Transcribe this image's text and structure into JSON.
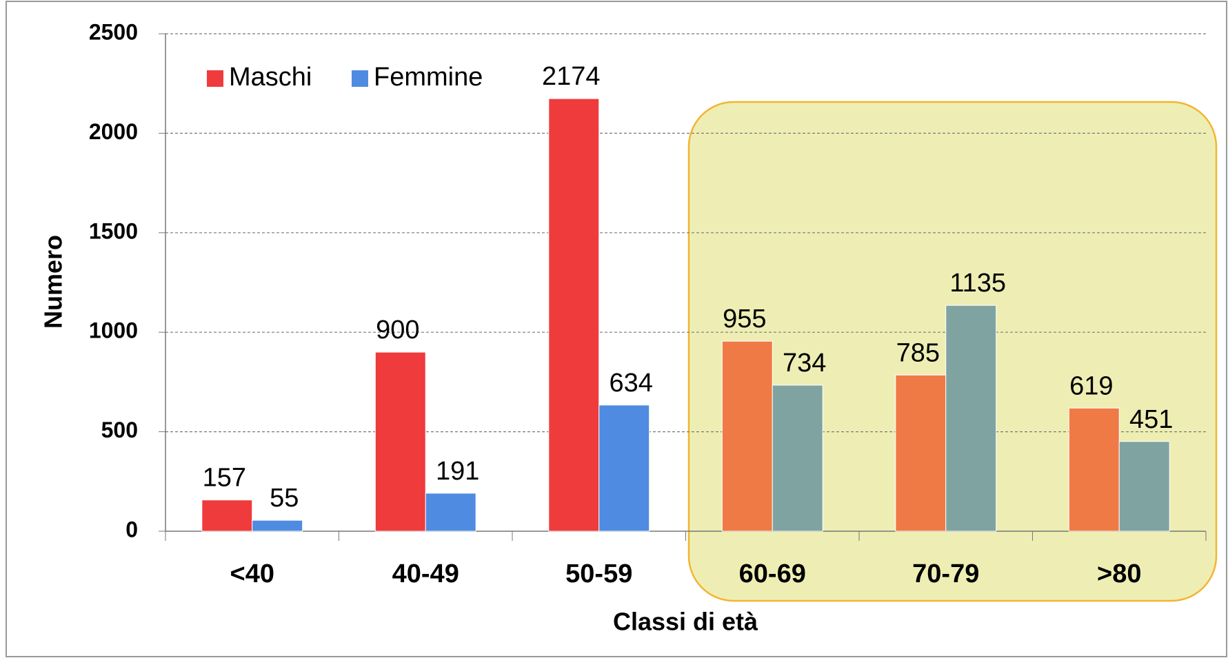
{
  "chart_data": {
    "type": "bar",
    "x_label": "Classi di età",
    "y_label": "Numero",
    "categories": [
      "<40",
      "40-49",
      "50-59",
      "60-69",
      "70-79",
      ">80"
    ],
    "series": [
      {
        "name": "Maschi",
        "color": "#ef3b3b",
        "colors": [
          "#ef3b3b",
          "#ef3b3b",
          "#ef3b3b",
          "#ef7a45",
          "#ef7a45",
          "#ef7a45"
        ],
        "values": [
          157,
          900,
          2174,
          955,
          785,
          619
        ]
      },
      {
        "name": "Femmine",
        "color": "#4f8be0",
        "colors": [
          "#4f8be0",
          "#4f8be0",
          "#4f8be0",
          "#7fa3a0",
          "#7fa3a0",
          "#7fa3a0"
        ],
        "values": [
          55,
          191,
          634,
          734,
          1135,
          451
        ]
      }
    ],
    "ylim": [
      0,
      2500
    ],
    "yticks": [
      0,
      500,
      1000,
      1500,
      2000,
      2500
    ],
    "grid": true,
    "legend": "top-left"
  }
}
